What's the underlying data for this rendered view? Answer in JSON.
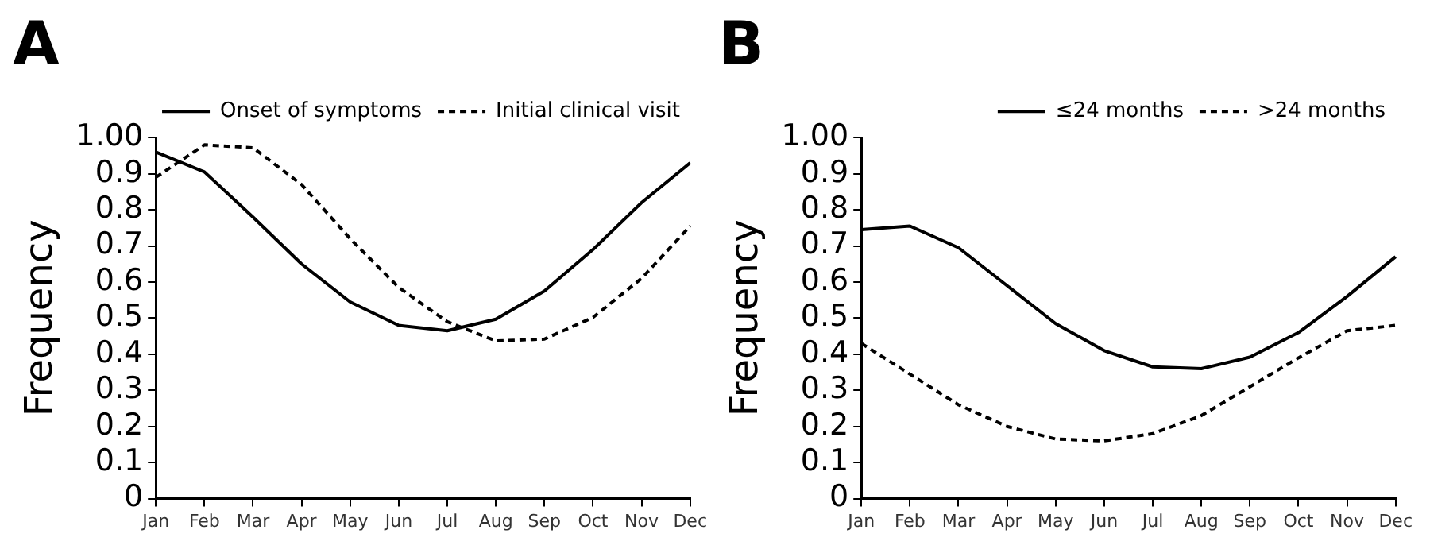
{
  "chart_data": [
    {
      "type": "line",
      "title": "A",
      "ylabel": "Frequency",
      "categories": [
        "Jan",
        "Feb",
        "Mar",
        "Apr",
        "May",
        "Jun",
        "Jul",
        "Aug",
        "Sep",
        "Oct",
        "Nov",
        "Dec"
      ],
      "ylim": [
        0,
        1
      ],
      "yticks": [
        0,
        0.1,
        0.2,
        0.3,
        0.4,
        0.5,
        0.6,
        0.7,
        0.8,
        0.9,
        {
          "value": 1,
          "label": "1.00"
        }
      ],
      "grid": false,
      "legend": "top right",
      "marker": "none",
      "series": [
        {
          "name": "Onset of symptoms",
          "color": "#000000",
          "line_style": "solid",
          "values": [
            0.96,
            0.905,
            0.78,
            0.65,
            0.545,
            0.48,
            0.465,
            0.497,
            0.575,
            0.69,
            0.82,
            0.93
          ]
        },
        {
          "name": "Initial clinical visit",
          "color": "#000000",
          "line_style": "dashed",
          "values": [
            0.89,
            0.98,
            0.972,
            0.87,
            0.72,
            0.585,
            0.49,
            0.437,
            0.442,
            0.502,
            0.61,
            0.755
          ]
        }
      ]
    },
    {
      "type": "line",
      "title": "B",
      "ylabel": "Frequency",
      "categories": [
        "Jan",
        "Feb",
        "Mar",
        "Apr",
        "May",
        "Jun",
        "Jul",
        "Aug",
        "Sep",
        "Oct",
        "Nov",
        "Dec"
      ],
      "ylim": [
        0,
        1
      ],
      "yticks": [
        0,
        0.1,
        0.2,
        0.3,
        0.4,
        0.5,
        0.6,
        0.7,
        0.8,
        0.9,
        {
          "value": 1,
          "label": "1.00"
        }
      ],
      "grid": false,
      "legend": "top right",
      "marker": "none",
      "series": [
        {
          "name": "≤24 months",
          "color": "#000000",
          "line_style": "solid",
          "values": [
            0.745,
            0.755,
            0.695,
            0.59,
            0.485,
            0.41,
            0.365,
            0.36,
            0.392,
            0.46,
            0.56,
            0.67
          ]
        },
        {
          "name": ">24 months",
          "color": "#000000",
          "line_style": "dashed",
          "values": [
            0.43,
            0.345,
            0.26,
            0.2,
            0.165,
            0.16,
            0.18,
            0.23,
            0.31,
            0.39,
            0.465,
            0.48
          ]
        }
      ]
    }
  ]
}
